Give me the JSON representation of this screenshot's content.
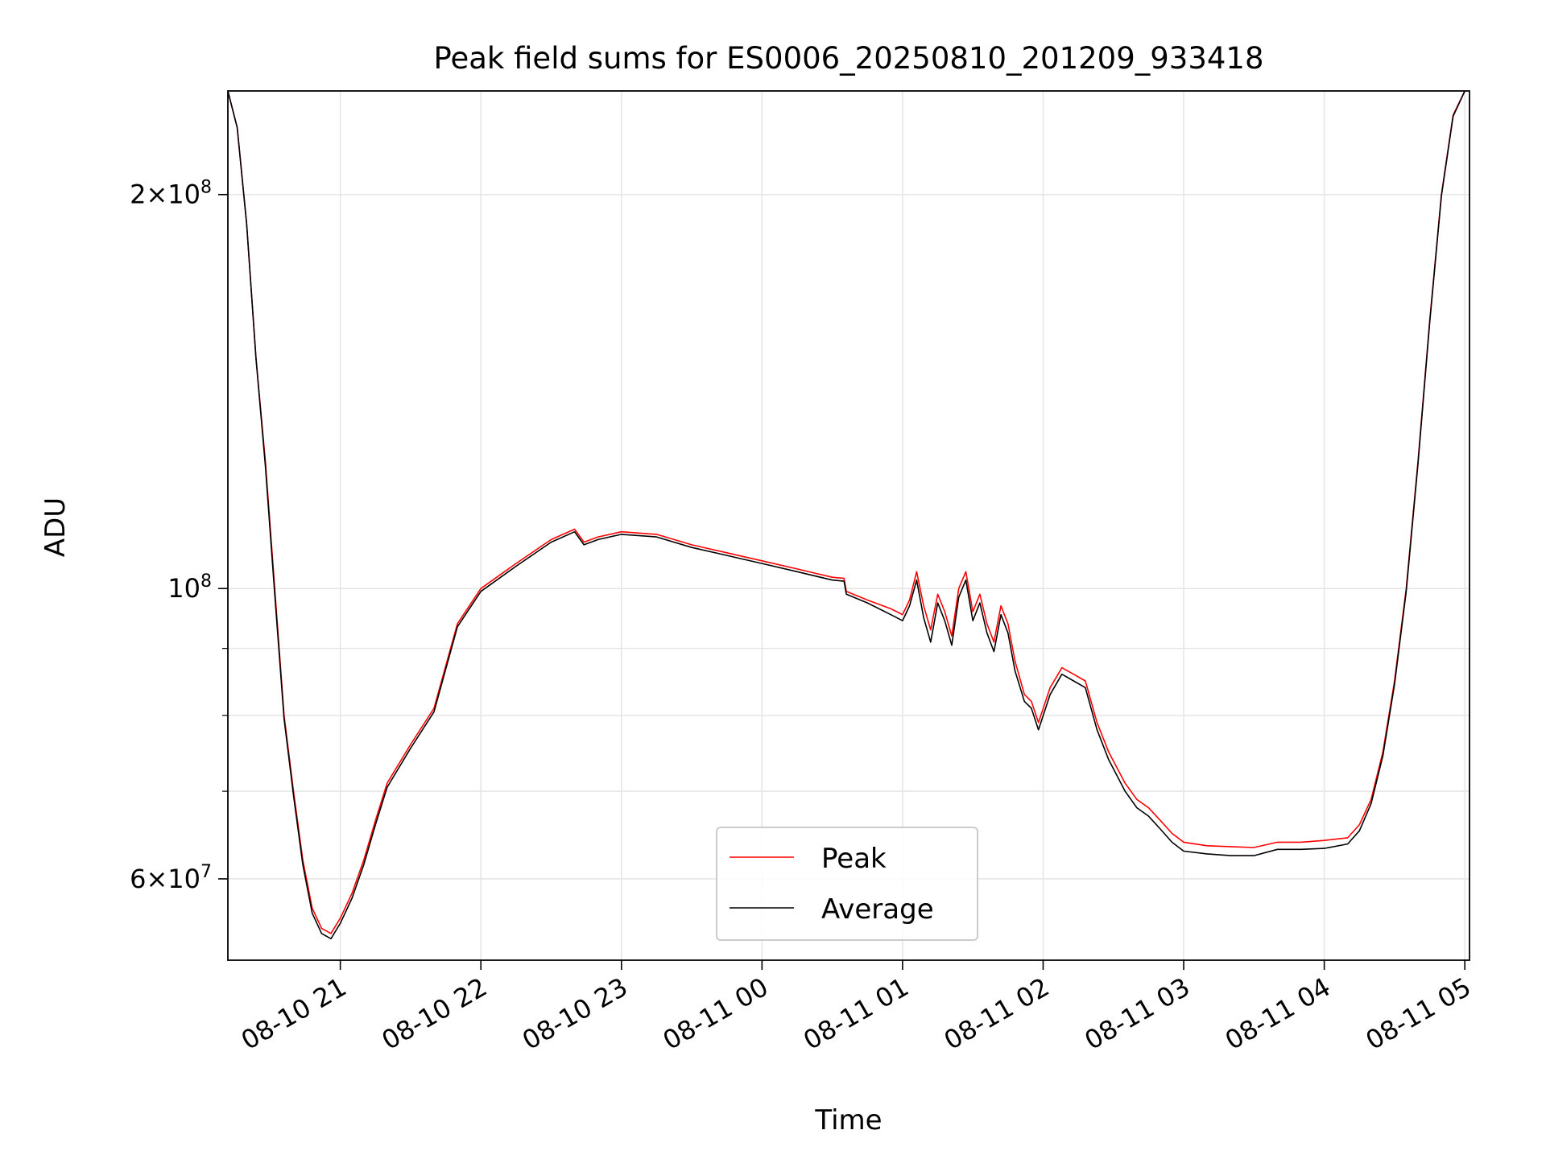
{
  "chart_data": {
    "type": "line",
    "title": "Peak field sums for ES0006_20250810_201209_933418",
    "xlabel": "Time",
    "ylabel": "ADU",
    "y_scale": "log",
    "ylim": [
      52000000,
      240000000
    ],
    "xlim": [
      "2025-08-10 20:12",
      "2025-08-11 05:02"
    ],
    "grid": true,
    "legend": {
      "position": "lower-center"
    },
    "x_ticks": [
      {
        "label": "08-10 21",
        "value": "2025-08-10 21:00"
      },
      {
        "label": "08-10 22",
        "value": "2025-08-10 22:00"
      },
      {
        "label": "08-10 23",
        "value": "2025-08-10 23:00"
      },
      {
        "label": "08-11 00",
        "value": "2025-08-11 00:00"
      },
      {
        "label": "08-11 01",
        "value": "2025-08-11 01:00"
      },
      {
        "label": "08-11 02",
        "value": "2025-08-11 02:00"
      },
      {
        "label": "08-11 03",
        "value": "2025-08-11 03:00"
      },
      {
        "label": "08-11 04",
        "value": "2025-08-11 04:00"
      },
      {
        "label": "08-11 05",
        "value": "2025-08-11 05:00"
      }
    ],
    "y_ticks": [
      {
        "mantissa": "2",
        "exponent": "8",
        "value": 200000000
      },
      {
        "mantissa": "",
        "exponent": "8",
        "value": 100000000
      },
      {
        "mantissa": "6",
        "exponent": "7",
        "value": 60000000
      }
    ],
    "y_minor_ticks": [
      70000000,
      80000000,
      90000000
    ],
    "x": [
      "2025-08-10 20:12",
      "2025-08-10 20:16",
      "2025-08-10 20:20",
      "2025-08-10 20:24",
      "2025-08-10 20:28",
      "2025-08-10 20:32",
      "2025-08-10 20:36",
      "2025-08-10 20:40",
      "2025-08-10 20:44",
      "2025-08-10 20:48",
      "2025-08-10 20:52",
      "2025-08-10 20:56",
      "2025-08-10 21:00",
      "2025-08-10 21:05",
      "2025-08-10 21:10",
      "2025-08-10 21:15",
      "2025-08-10 21:20",
      "2025-08-10 21:30",
      "2025-08-10 21:40",
      "2025-08-10 21:44",
      "2025-08-10 21:50",
      "2025-08-10 22:00",
      "2025-08-10 22:15",
      "2025-08-10 22:30",
      "2025-08-10 22:40",
      "2025-08-10 22:44",
      "2025-08-10 22:50",
      "2025-08-10 23:00",
      "2025-08-10 23:15",
      "2025-08-10 23:30",
      "2025-08-10 23:45",
      "2025-08-11 00:00",
      "2025-08-11 00:15",
      "2025-08-11 00:30",
      "2025-08-11 00:35",
      "2025-08-11 00:36",
      "2025-08-11 00:45",
      "2025-08-11 00:55",
      "2025-08-11 01:00",
      "2025-08-11 01:03",
      "2025-08-11 01:06",
      "2025-08-11 01:09",
      "2025-08-11 01:12",
      "2025-08-11 01:15",
      "2025-08-11 01:18",
      "2025-08-11 01:21",
      "2025-08-11 01:24",
      "2025-08-11 01:27",
      "2025-08-11 01:30",
      "2025-08-11 01:33",
      "2025-08-11 01:36",
      "2025-08-11 01:39",
      "2025-08-11 01:42",
      "2025-08-11 01:45",
      "2025-08-11 01:48",
      "2025-08-11 01:52",
      "2025-08-11 01:55",
      "2025-08-11 01:58",
      "2025-08-11 02:03",
      "2025-08-11 02:08",
      "2025-08-11 02:13",
      "2025-08-11 02:18",
      "2025-08-11 02:23",
      "2025-08-11 02:28",
      "2025-08-11 02:35",
      "2025-08-11 02:40",
      "2025-08-11 02:45",
      "2025-08-11 02:50",
      "2025-08-11 02:55",
      "2025-08-11 03:00",
      "2025-08-11 03:10",
      "2025-08-11 03:20",
      "2025-08-11 03:30",
      "2025-08-11 03:40",
      "2025-08-11 03:50",
      "2025-08-11 04:00",
      "2025-08-11 04:10",
      "2025-08-11 04:15",
      "2025-08-11 04:20",
      "2025-08-11 04:25",
      "2025-08-11 04:30",
      "2025-08-11 04:35",
      "2025-08-11 04:40",
      "2025-08-11 04:45",
      "2025-08-11 04:50",
      "2025-08-11 04:55",
      "2025-08-11 05:00"
    ],
    "series": [
      {
        "name": "Peak",
        "color": "#ff0000",
        "values": [
          240000000,
          225000000,
          190000000,
          150000000,
          125000000,
          100000000,
          80000000,
          70000000,
          62000000,
          57000000,
          55000000,
          54500000,
          56000000,
          58500000,
          62000000,
          66500000,
          71000000,
          76000000,
          81000000,
          86000000,
          94000000,
          100000000,
          104500000,
          109000000,
          111000000,
          108500000,
          109500000,
          110500000,
          110000000,
          108000000,
          106500000,
          105000000,
          103500000,
          102000000,
          101800000,
          99500000,
          98000000,
          96500000,
          95500000,
          98000000,
          103000000,
          97000000,
          93000000,
          99000000,
          96000000,
          92000000,
          100000000,
          103000000,
          96000000,
          99000000,
          94000000,
          91000000,
          97000000,
          94000000,
          88000000,
          83000000,
          82000000,
          79000000,
          84000000,
          87000000,
          86000000,
          85000000,
          79000000,
          75000000,
          71000000,
          69000000,
          68000000,
          66500000,
          65000000,
          64000000,
          63600000,
          63500000,
          63400000,
          64000000,
          64000000,
          64200000,
          64500000,
          66000000,
          69000000,
          75000000,
          85000000,
          100000000,
          125000000,
          160000000,
          200000000,
          230000000,
          240000000
        ]
      },
      {
        "name": "Average",
        "color": "#000000",
        "values": [
          240000000,
          225000000,
          190000000,
          150000000,
          124000000,
          99000000,
          79500000,
          69500000,
          61500000,
          56500000,
          54500000,
          54000000,
          55500000,
          58000000,
          61500000,
          66000000,
          70500000,
          75500000,
          80500000,
          85500000,
          93500000,
          99500000,
          104000000,
          108500000,
          110500000,
          108000000,
          109000000,
          110000000,
          109500000,
          107500000,
          106000000,
          104500000,
          103000000,
          101500000,
          101300000,
          99000000,
          97500000,
          95500000,
          94500000,
          97000000,
          101500000,
          95000000,
          91000000,
          97500000,
          94500000,
          90500000,
          98500000,
          101500000,
          94500000,
          97500000,
          92500000,
          89500000,
          95500000,
          92500000,
          86500000,
          82000000,
          81000000,
          78000000,
          83000000,
          86000000,
          85000000,
          84000000,
          78000000,
          74000000,
          70000000,
          68000000,
          67000000,
          65500000,
          64000000,
          63000000,
          62700000,
          62500000,
          62500000,
          63200000,
          63200000,
          63300000,
          63800000,
          65300000,
          68500000,
          74500000,
          84500000,
          99500000,
          124500000,
          159500000,
          199500000,
          229500000,
          240000000
        ]
      }
    ]
  }
}
